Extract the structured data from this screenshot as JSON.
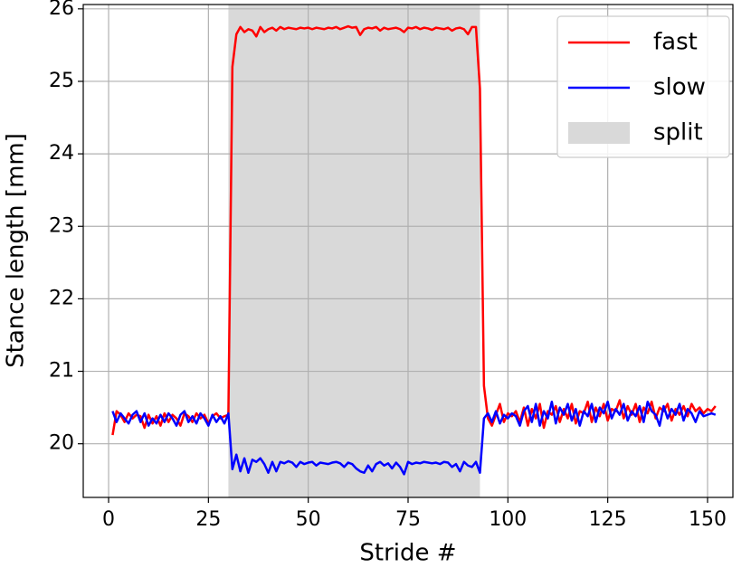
{
  "chart_data": {
    "type": "line",
    "xlabel": "Stride #",
    "ylabel": "Stance length [mm]",
    "x": [
      1,
      2,
      3,
      4,
      5,
      6,
      7,
      8,
      9,
      10,
      11,
      12,
      13,
      14,
      15,
      16,
      17,
      18,
      19,
      20,
      21,
      22,
      23,
      24,
      25,
      26,
      27,
      28,
      29,
      30,
      31,
      32,
      33,
      34,
      35,
      36,
      37,
      38,
      39,
      40,
      41,
      42,
      43,
      44,
      45,
      46,
      47,
      48,
      49,
      50,
      51,
      52,
      53,
      54,
      55,
      56,
      57,
      58,
      59,
      60,
      61,
      62,
      63,
      64,
      65,
      66,
      67,
      68,
      69,
      70,
      71,
      72,
      73,
      74,
      75,
      76,
      77,
      78,
      79,
      80,
      81,
      82,
      83,
      84,
      85,
      86,
      87,
      88,
      89,
      90,
      91,
      92,
      93,
      94,
      95,
      96,
      97,
      98,
      99,
      100,
      101,
      102,
      103,
      104,
      105,
      106,
      107,
      108,
      109,
      110,
      111,
      112,
      113,
      114,
      115,
      116,
      117,
      118,
      119,
      120,
      121,
      122,
      123,
      124,
      125,
      126,
      127,
      128,
      129,
      130,
      131,
      132,
      133,
      134,
      135,
      136,
      137,
      138,
      139,
      140,
      141,
      142,
      143,
      144,
      145,
      146,
      147,
      148,
      149,
      150,
      151,
      152
    ],
    "series": [
      {
        "name": "fast",
        "color": "#ff0000",
        "values": [
          20.12,
          20.45,
          20.4,
          20.3,
          20.42,
          20.35,
          20.4,
          20.38,
          20.22,
          20.4,
          20.28,
          20.38,
          20.25,
          20.42,
          20.3,
          20.4,
          20.35,
          20.25,
          20.42,
          20.38,
          20.3,
          20.42,
          20.35,
          20.4,
          20.28,
          20.38,
          20.42,
          20.35,
          20.38,
          20.4,
          25.2,
          25.65,
          25.75,
          25.68,
          25.72,
          25.7,
          25.62,
          25.75,
          25.68,
          25.72,
          25.74,
          25.7,
          25.75,
          25.72,
          25.74,
          25.73,
          25.72,
          25.74,
          25.73,
          25.74,
          25.72,
          25.74,
          25.73,
          25.72,
          25.74,
          25.73,
          25.75,
          25.72,
          25.74,
          25.76,
          25.74,
          25.75,
          25.64,
          25.72,
          25.74,
          25.73,
          25.75,
          25.7,
          25.74,
          25.72,
          25.73,
          25.74,
          25.72,
          25.68,
          25.74,
          25.73,
          25.75,
          25.72,
          25.74,
          25.73,
          25.71,
          25.74,
          25.73,
          25.72,
          25.74,
          25.7,
          25.73,
          25.74,
          25.72,
          25.65,
          25.75,
          25.75,
          24.9,
          20.8,
          20.35,
          20.25,
          20.4,
          20.55,
          20.3,
          20.42,
          20.38,
          20.45,
          20.3,
          20.5,
          20.25,
          20.48,
          20.35,
          20.55,
          20.22,
          20.45,
          20.4,
          20.52,
          20.3,
          20.48,
          20.35,
          20.55,
          20.28,
          20.45,
          20.42,
          20.58,
          20.3,
          20.5,
          20.38,
          20.55,
          20.32,
          20.48,
          20.45,
          20.6,
          20.35,
          20.52,
          20.4,
          20.55,
          20.3,
          20.5,
          20.42,
          20.58,
          20.35,
          20.5,
          20.45,
          20.55,
          20.32,
          20.48,
          20.4,
          20.52,
          20.38,
          20.55,
          20.45,
          20.5,
          20.42,
          20.48,
          20.45,
          20.52
        ]
      },
      {
        "name": "slow",
        "color": "#0000ff",
        "values": [
          20.45,
          20.3,
          20.42,
          20.35,
          20.28,
          20.4,
          20.45,
          20.3,
          20.42,
          20.25,
          20.35,
          20.28,
          20.4,
          20.3,
          20.42,
          20.35,
          20.25,
          20.4,
          20.45,
          20.3,
          20.38,
          20.28,
          20.42,
          20.35,
          20.25,
          20.4,
          20.3,
          20.38,
          20.28,
          20.42,
          19.65,
          19.85,
          19.62,
          19.8,
          19.6,
          19.78,
          19.75,
          19.8,
          19.72,
          19.6,
          19.75,
          19.62,
          19.75,
          19.73,
          19.76,
          19.74,
          19.68,
          19.75,
          19.72,
          19.74,
          19.75,
          19.7,
          19.74,
          19.73,
          19.72,
          19.74,
          19.75,
          19.73,
          19.68,
          19.74,
          19.72,
          19.66,
          19.62,
          19.6,
          19.7,
          19.62,
          19.72,
          19.75,
          19.7,
          19.73,
          19.66,
          19.74,
          19.68,
          19.58,
          19.75,
          19.72,
          19.74,
          19.73,
          19.75,
          19.74,
          19.73,
          19.74,
          19.72,
          19.75,
          19.74,
          19.68,
          19.72,
          19.62,
          19.75,
          19.7,
          19.68,
          19.75,
          19.6,
          20.35,
          20.42,
          20.3,
          20.45,
          20.28,
          20.4,
          20.35,
          20.42,
          20.38,
          20.25,
          20.45,
          20.52,
          20.3,
          20.55,
          20.25,
          20.45,
          20.35,
          20.58,
          20.28,
          20.5,
          20.4,
          20.55,
          20.32,
          20.48,
          20.25,
          20.45,
          20.38,
          20.55,
          20.3,
          20.5,
          20.42,
          20.58,
          20.35,
          20.48,
          20.4,
          20.55,
          20.32,
          20.45,
          20.38,
          20.52,
          20.3,
          20.58,
          20.45,
          20.4,
          20.25,
          20.52,
          20.35,
          20.48,
          20.4,
          20.55,
          20.32,
          20.48,
          20.42,
          20.3,
          20.45,
          20.38,
          20.4,
          20.42,
          20.4
        ]
      }
    ],
    "span": {
      "label": "split",
      "start": 30,
      "end": 93,
      "color": "#d9d9d9"
    },
    "xlim": [
      -6.35,
      156.35
    ],
    "xticks": [
      0,
      25,
      50,
      75,
      100,
      125,
      150
    ],
    "ylim": [
      19.26,
      26.06
    ],
    "yticks": [
      20,
      21,
      22,
      23,
      24,
      25,
      26
    ],
    "grid": true,
    "legend": "upper right"
  }
}
